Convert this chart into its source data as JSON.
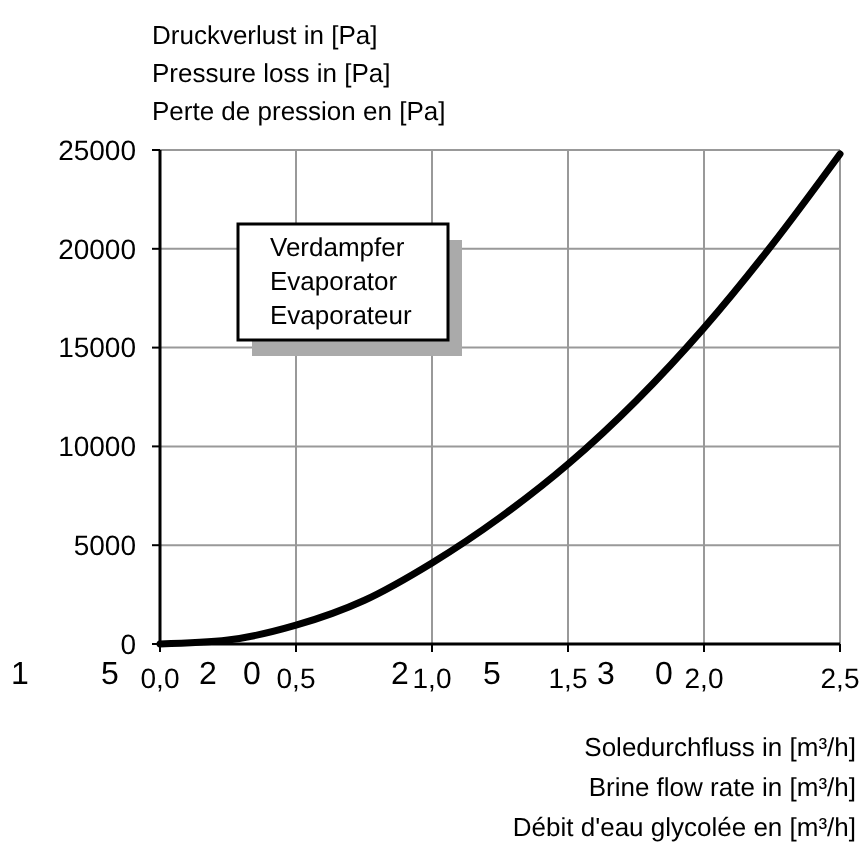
{
  "chart_data": {
    "type": "line",
    "xlabel": "Soledurchfluss in [m³/h]\nBrine flow rate in [m³/h]\nDébit d'eau glycolée en [m³/h]",
    "ylabel": "Druckverlust in [Pa]\nPressure loss in [Pa]\nPerte de pression en [Pa]",
    "x": [
      0,
      0.25,
      0.5,
      0.75,
      1.0,
      1.25,
      1.5,
      1.75,
      2.0,
      2.25,
      2.5
    ],
    "series": [
      {
        "color": "#000000",
        "values": [
          0,
          200,
          950,
          2200,
          4100,
          6400,
          9100,
          12300,
          16000,
          20200,
          24800
        ]
      }
    ],
    "xlim": [
      0,
      2.5
    ],
    "ylim": [
      0,
      25000
    ],
    "xticks": [
      {
        "value": 0,
        "label": "0,0"
      },
      {
        "value": 0.5,
        "label": "0,5"
      },
      {
        "value": 1,
        "label": "1,0"
      },
      {
        "value": 1.5,
        "label": "1,5"
      },
      {
        "value": 2,
        "label": "2,0"
      },
      {
        "value": 2.5,
        "label": "2,5"
      }
    ],
    "yticks": [
      0,
      5000,
      10000,
      15000,
      20000,
      25000
    ],
    "grid": true,
    "marker": "none",
    "line_style": "solid",
    "annotations": [
      "Verdampfer\nEvaporator\nEvaporateur",
      "1",
      "5",
      "2",
      "0",
      "2",
      "5",
      "3",
      "0"
    ]
  }
}
